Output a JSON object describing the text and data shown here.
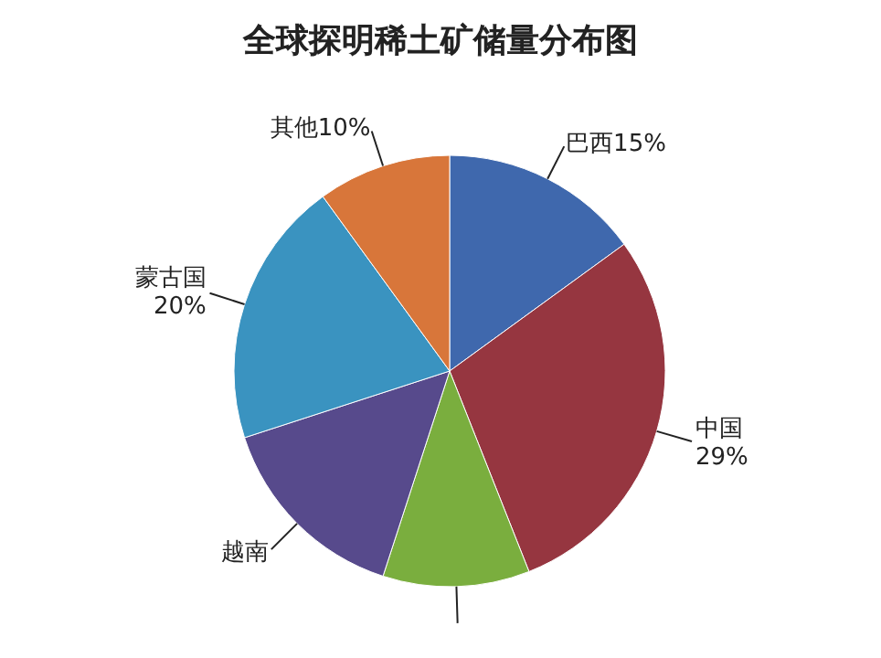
{
  "chart_data": {
    "type": "pie",
    "title": "全球探明稀土矿储量分布图",
    "categories": [
      "巴西",
      "中国",
      null,
      "越南",
      "蒙古国",
      "其他"
    ],
    "values": [
      15,
      29,
      11,
      15,
      20,
      10
    ],
    "value_labels": [
      "15%",
      "29%",
      null,
      null,
      "20%",
      "10%"
    ],
    "colors": [
      "#3f68ad",
      "#963640",
      "#7aae3e",
      "#574a8c",
      "#3a93c0",
      "#d8763a"
    ],
    "legend": false
  }
}
